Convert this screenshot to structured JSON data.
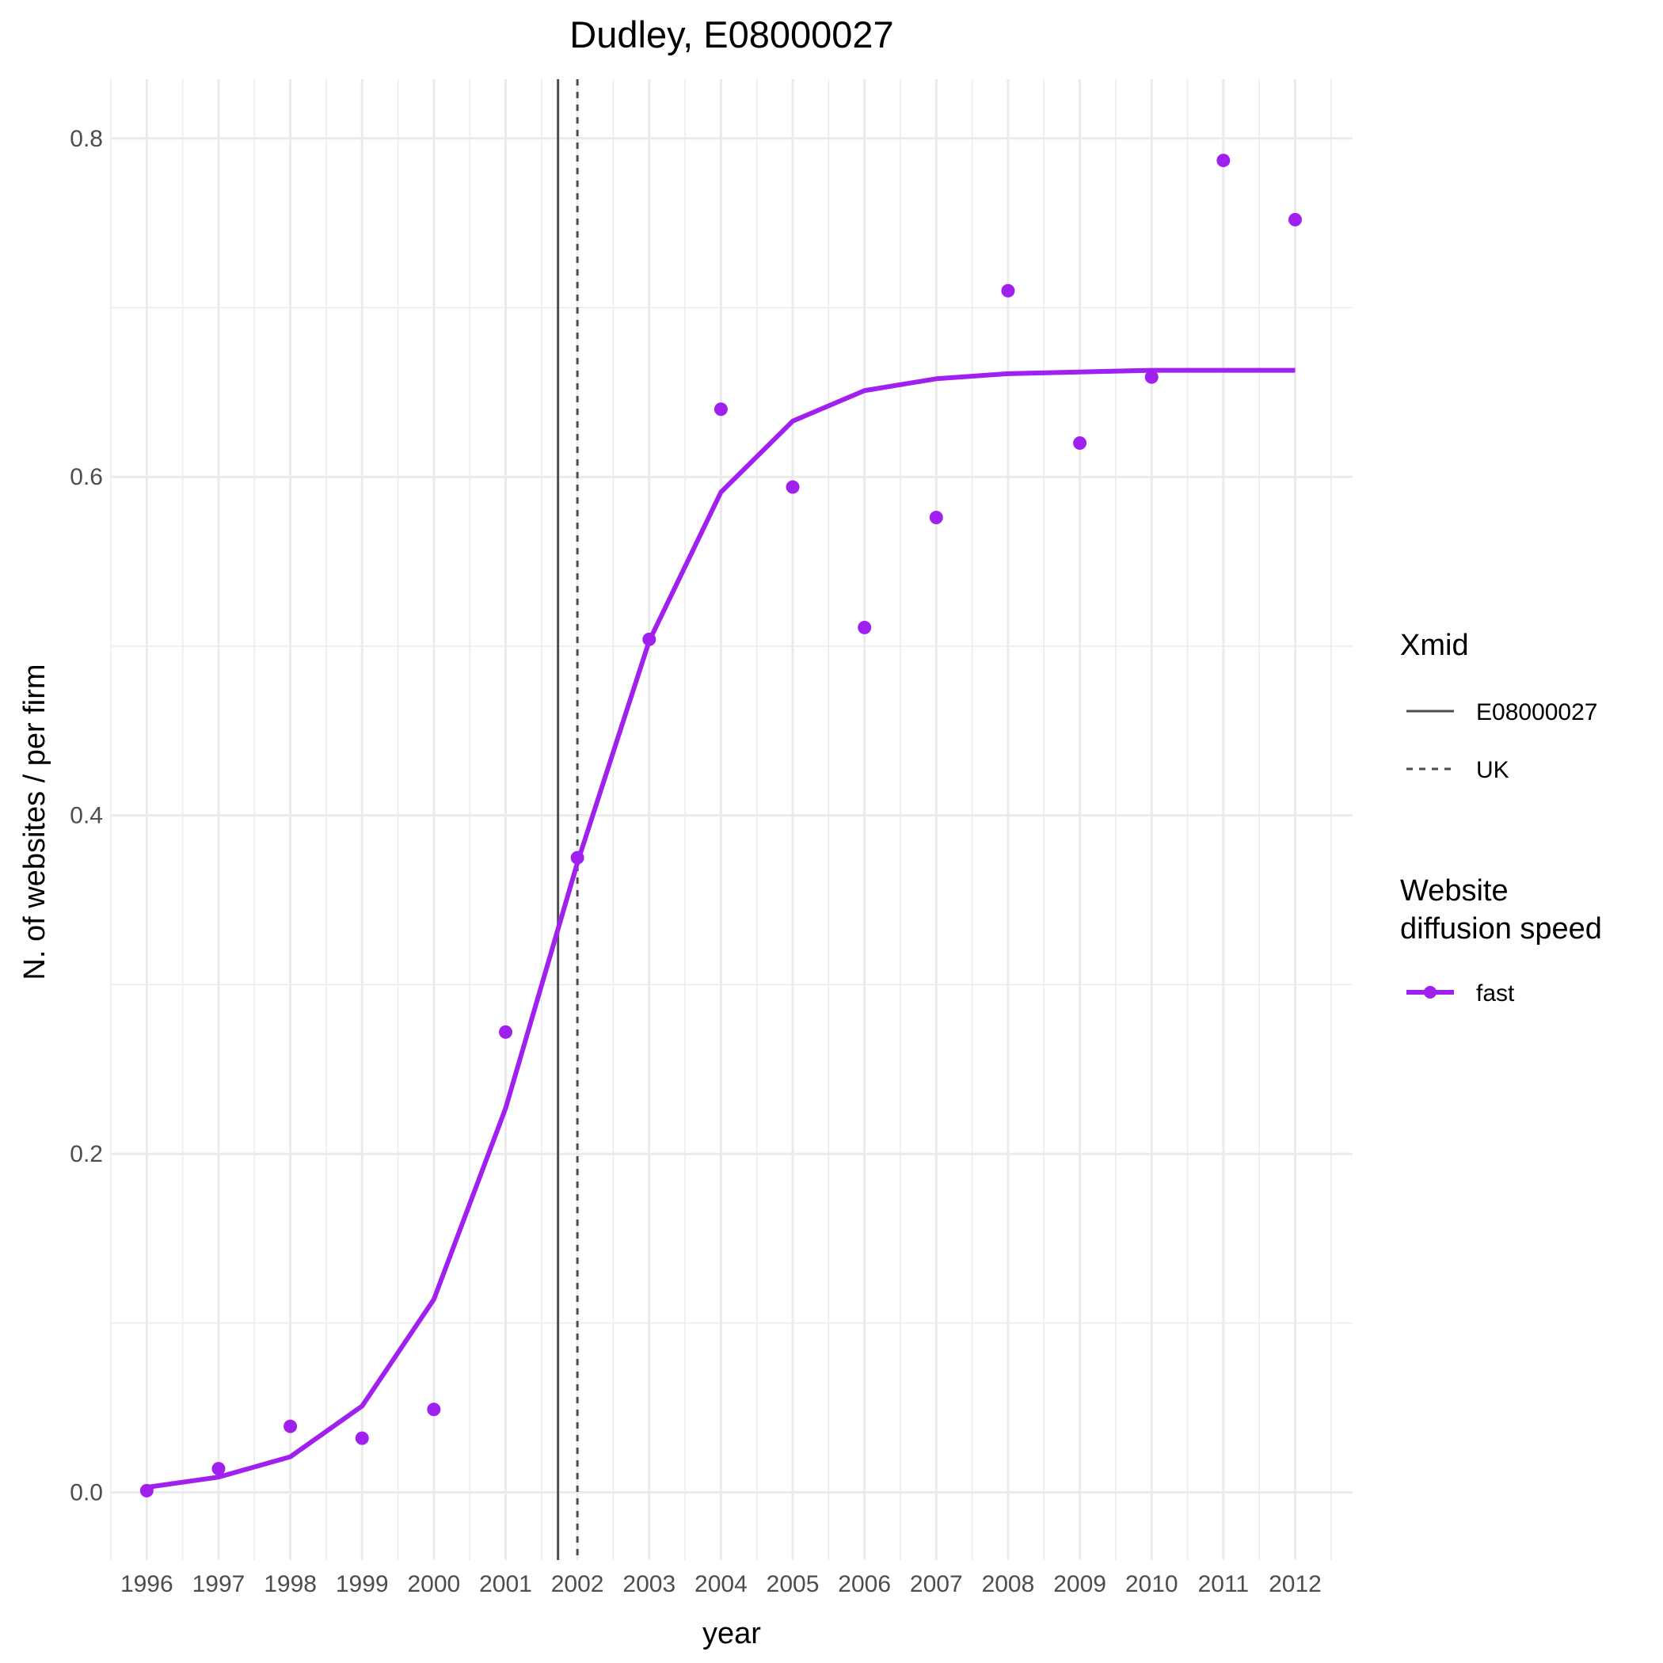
{
  "chart_data": {
    "type": "line",
    "title": "Dudley, E08000027",
    "xlabel": "year",
    "ylabel": "N. of websites / per firm",
    "x": [
      1996,
      1997,
      1998,
      1999,
      2000,
      2001,
      2002,
      2003,
      2004,
      2005,
      2006,
      2007,
      2008,
      2009,
      2010,
      2011,
      2012
    ],
    "x_tick_labels": [
      "1996",
      "1997",
      "1998",
      "1999",
      "2000",
      "2001",
      "2002",
      "2003",
      "2004",
      "2005",
      "2006",
      "2007",
      "2008",
      "2009",
      "2010",
      "2011",
      "2012"
    ],
    "y_ticks": [
      0.0,
      0.2,
      0.4,
      0.6,
      0.8
    ],
    "y_tick_labels": [
      "0.0",
      "0.2",
      "0.4",
      "0.6",
      "0.8"
    ],
    "xlim": [
      1995.5,
      2012.8
    ],
    "ylim": [
      -0.04,
      0.835
    ],
    "grid": true,
    "series": [
      {
        "name": "fast",
        "kind": "fitted-line",
        "color": "#a020f0",
        "values": [
          0.003,
          0.009,
          0.021,
          0.051,
          0.114,
          0.227,
          0.372,
          0.503,
          0.591,
          0.633,
          0.651,
          0.658,
          0.661,
          0.662,
          0.663,
          0.663,
          0.663
        ]
      },
      {
        "name": "fast",
        "kind": "points",
        "color": "#a020f0",
        "values": [
          0.001,
          0.014,
          0.039,
          0.032,
          0.049,
          0.272,
          0.375,
          0.504,
          0.64,
          0.594,
          0.511,
          0.576,
          0.71,
          0.62,
          0.659,
          0.787,
          0.752
        ]
      }
    ],
    "vlines": [
      {
        "name": "E08000027",
        "x": 2001.73,
        "style": "solid",
        "color": "#4d4d4d"
      },
      {
        "name": "UK",
        "x": 2002.0,
        "style": "dashed",
        "color": "#4d4d4d"
      }
    ],
    "legend": {
      "placement": "right",
      "groups": [
        {
          "title": "Xmid",
          "items": [
            "E08000027",
            "UK"
          ]
        },
        {
          "title": "Website\ndiffusion speed",
          "items": [
            "fast"
          ]
        }
      ]
    }
  }
}
